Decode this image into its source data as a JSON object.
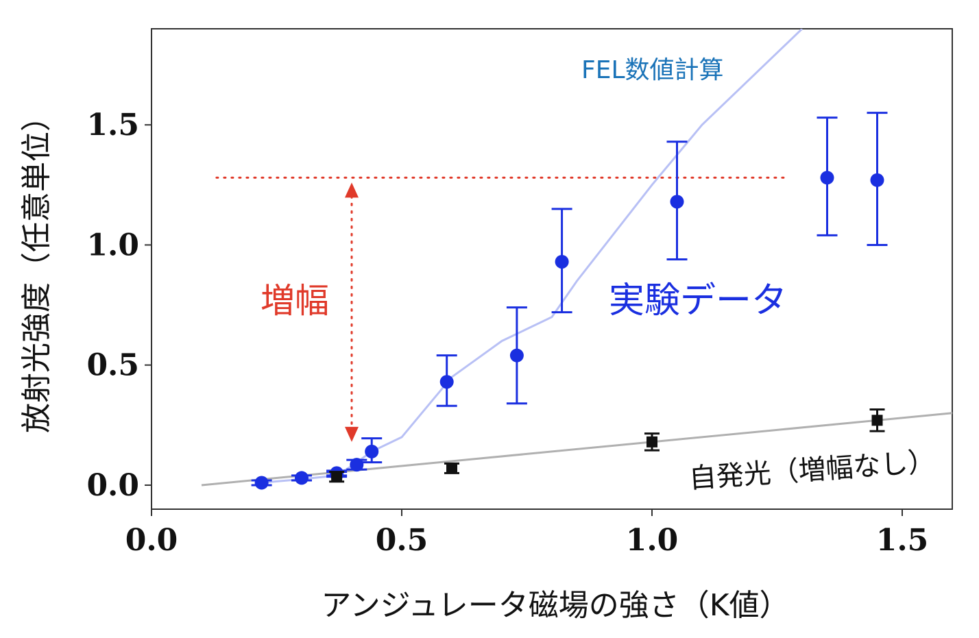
{
  "chart_data": {
    "type": "scatter",
    "xlabel": "アンジュレータ磁場の強さ（K値）",
    "ylabel": "放射光強度（任意単位）",
    "xlim": [
      0.0,
      1.6
    ],
    "ylim": [
      -0.1,
      1.9
    ],
    "xticks": [
      "0.0",
      "0.5",
      "1.0",
      "1.5"
    ],
    "yticks": [
      "0.0",
      "0.5",
      "1.0",
      "1.5"
    ],
    "grid": false,
    "series": [
      {
        "name": "実験データ",
        "marker": "circle",
        "color": "#1a2fe0",
        "x": [
          0.22,
          0.3,
          0.37,
          0.37,
          0.41,
          0.44,
          0.59,
          0.73,
          0.82,
          1.05,
          1.35,
          1.45
        ],
        "y": [
          0.01,
          0.03,
          0.045,
          0.05,
          0.085,
          0.14,
          0.43,
          0.54,
          0.93,
          1.18,
          1.28,
          1.27
        ],
        "yerr_low": [
          0.01,
          0.01,
          0.01,
          0.01,
          0.02,
          0.045,
          0.1,
          0.2,
          0.21,
          0.24,
          0.24,
          0.27
        ],
        "yerr_high": [
          0.01,
          0.01,
          0.01,
          0.01,
          0.02,
          0.055,
          0.11,
          0.2,
          0.22,
          0.25,
          0.25,
          0.28
        ]
      },
      {
        "name": "自発光（増幅なし）",
        "marker": "square",
        "color": "#111111",
        "x": [
          0.37,
          0.6,
          1.0,
          1.45
        ],
        "y": [
          0.035,
          0.07,
          0.18,
          0.27
        ],
        "yerr_low": [
          0.02,
          0.02,
          0.035,
          0.045
        ],
        "yerr_high": [
          0.02,
          0.02,
          0.035,
          0.045
        ]
      }
    ],
    "lines": [
      {
        "name": "FEL数値計算",
        "color": "#b8c0f5",
        "x": [
          0.22,
          0.3,
          0.37,
          0.4,
          0.44,
          0.5,
          0.6,
          0.7,
          0.8,
          0.85,
          1.0,
          1.1,
          1.3
        ],
        "y": [
          0.01,
          0.025,
          0.04,
          0.08,
          0.14,
          0.2,
          0.45,
          0.6,
          0.7,
          0.85,
          1.25,
          1.5,
          1.9
        ]
      },
      {
        "name": "自発光（増幅なし）",
        "color": "#b0b0b0",
        "x": [
          0.1,
          1.6
        ],
        "y": [
          0.0,
          0.3
        ]
      }
    ],
    "annotations": {
      "fel_label": "FEL数値計算",
      "exp_label": "実験データ",
      "amp_label": "増幅",
      "spont_label": "自発光（増幅なし）",
      "gain_level": 1.28,
      "gain_line_x": [
        0.13,
        1.27
      ],
      "gain_arrow_x": 0.4,
      "gain_arrow_y": [
        0.18,
        1.26
      ],
      "fel_color": "#1a73b8",
      "exp_color": "#1a2fe0",
      "amp_color": "#e03a2a"
    }
  }
}
